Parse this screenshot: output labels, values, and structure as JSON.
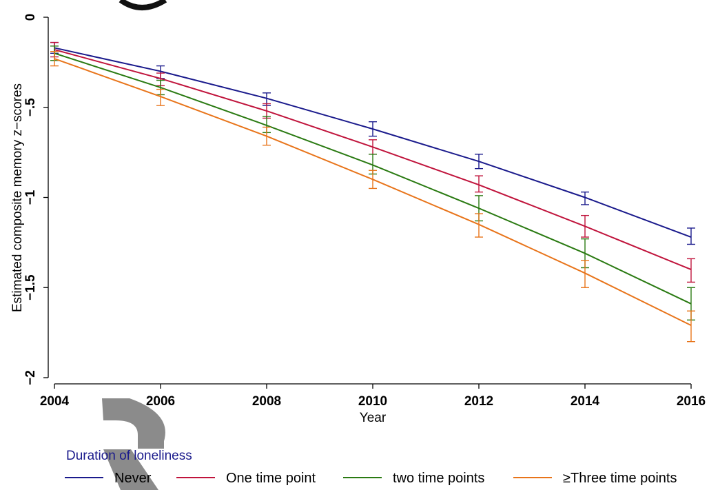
{
  "chart_data": {
    "type": "line",
    "xlabel": "Year",
    "ylabel": "Estimated composite memory z−scores",
    "x": [
      2004,
      2006,
      2008,
      2010,
      2012,
      2014,
      2016
    ],
    "xlim": [
      2004,
      2016
    ],
    "ylim": [
      -2,
      0
    ],
    "x_ticks": [
      "2004",
      "2006",
      "2008",
      "2010",
      "2012",
      "2014",
      "2016"
    ],
    "y_ticks": [
      "0",
      "−.5",
      "−1",
      "−1.5",
      "−2"
    ],
    "y_tick_values": [
      0,
      -0.5,
      -1,
      -1.5,
      -2
    ],
    "grid": false,
    "legend_title": "Duration of loneliness",
    "legend_position": "bottom",
    "series": [
      {
        "name": "Never",
        "color": "#1a1a8c",
        "values": [
          -0.17,
          -0.3,
          -0.45,
          -0.62,
          -0.8,
          -1.0,
          -1.22
        ],
        "ci_low": [
          -0.2,
          -0.34,
          -0.49,
          -0.66,
          -0.84,
          -1.04,
          -1.26
        ],
        "ci_high": [
          -0.14,
          -0.27,
          -0.42,
          -0.58,
          -0.76,
          -0.97,
          -1.17
        ]
      },
      {
        "name": "One time point",
        "color": "#c0143c",
        "values": [
          -0.18,
          -0.34,
          -0.52,
          -0.72,
          -0.93,
          -1.16,
          -1.4
        ],
        "ci_low": [
          -0.22,
          -0.38,
          -0.56,
          -0.76,
          -0.97,
          -1.22,
          -1.47
        ],
        "ci_high": [
          -0.14,
          -0.31,
          -0.48,
          -0.68,
          -0.88,
          -1.1,
          -1.34
        ]
      },
      {
        "name": "two time points",
        "color": "#2a7a12",
        "values": [
          -0.2,
          -0.39,
          -0.6,
          -0.82,
          -1.06,
          -1.31,
          -1.59
        ],
        "ci_low": [
          -0.24,
          -0.43,
          -0.64,
          -0.87,
          -1.13,
          -1.39,
          -1.68
        ],
        "ci_high": [
          -0.16,
          -0.35,
          -0.55,
          -0.76,
          -0.99,
          -1.23,
          -1.5
        ]
      },
      {
        "name": "≥Three time points",
        "color": "#e8741a",
        "values": [
          -0.23,
          -0.44,
          -0.66,
          -0.9,
          -1.15,
          -1.42,
          -1.71
        ],
        "ci_low": [
          -0.27,
          -0.49,
          -0.71,
          -0.95,
          -1.22,
          -1.5,
          -1.8
        ],
        "ci_high": [
          -0.19,
          -0.4,
          -0.61,
          -0.85,
          -1.09,
          -1.35,
          -1.63
        ]
      }
    ]
  }
}
